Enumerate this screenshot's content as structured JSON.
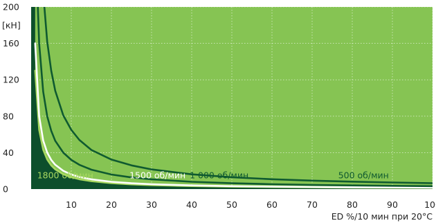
{
  "chart_data": {
    "type": "line",
    "title": "",
    "ylabel": "[кН]",
    "xlabel": "ED %/10 мин при 20°C",
    "xlim": [
      0,
      100
    ],
    "ylim": [
      0,
      200
    ],
    "xticks": [
      "10",
      "20",
      "30",
      "40",
      "50",
      "60",
      "70",
      "80",
      "90",
      "100"
    ],
    "yticks": [
      "0",
      "40",
      "80",
      "120",
      "160",
      "200"
    ],
    "grid": true,
    "colors": {
      "background": "#86c453",
      "fill_region": "#0d4f2c",
      "curve_dark": "#0f5a30",
      "curve_white": "#ffffff",
      "curve_light": "#a8d860",
      "grid": "#ffffff"
    },
    "series": [
      {
        "name": "1800 об/мин",
        "color": "#a8d860",
        "x": [
          1,
          2,
          3,
          4,
          5,
          6,
          8,
          10,
          12,
          15,
          20,
          25,
          30,
          40,
          50,
          60,
          70,
          80,
          90,
          100
        ],
        "y": [
          130,
          65,
          43.3,
          32.5,
          26,
          21.7,
          16.3,
          13,
          10.8,
          8.7,
          6.5,
          5.2,
          4.3,
          3.3,
          2.6,
          2.2,
          1.9,
          1.6,
          1.4,
          1.3
        ]
      },
      {
        "name": "1500 об/мин",
        "color": "#ffffff",
        "x": [
          1,
          2,
          3,
          4,
          5,
          6,
          8,
          10,
          12,
          15,
          20,
          25,
          30,
          40,
          50,
          60,
          70,
          80,
          90,
          100
        ],
        "y": [
          160,
          80,
          53.3,
          40,
          32,
          26.7,
          20,
          16,
          13.3,
          10.7,
          8,
          6.4,
          5.3,
          4,
          3.2,
          2.7,
          2.3,
          2,
          1.8,
          1.6
        ]
      },
      {
        "name": "1 000 об/мин",
        "color": "#0f5a30",
        "x": [
          1.5,
          2,
          3,
          4,
          5,
          6,
          8,
          10,
          12,
          15,
          20,
          25,
          30,
          40,
          50,
          60,
          70,
          80,
          90,
          100
        ],
        "y": [
          220,
          160,
          107,
          80,
          64,
          53,
          40,
          32,
          26.7,
          21.3,
          16,
          12.8,
          10.7,
          8,
          6.4,
          5.3,
          4.6,
          4,
          3.6,
          3.2
        ]
      },
      {
        "name": "500 об/мин",
        "color": "#0f5a30",
        "x": [
          3,
          4,
          5,
          6,
          8,
          10,
          12,
          15,
          20,
          25,
          30,
          40,
          50,
          60,
          70,
          80,
          90,
          100
        ],
        "y": [
          216,
          162,
          130,
          108,
          81,
          65,
          54,
          43,
          32.4,
          26,
          21.6,
          16.2,
          13,
          10.8,
          9.3,
          8.1,
          7.2,
          6.5
        ]
      }
    ],
    "annotations": [
      {
        "text": "1800 об/мин",
        "x": 1.5,
        "y": 15,
        "color": "#a8d860"
      },
      {
        "text": "1500 об/мин",
        "x": 24.5,
        "y": 15,
        "color": "#ffffff"
      },
      {
        "text": "1 000 об/мин",
        "x": 39.5,
        "y": 15,
        "color": "#0f5a30"
      },
      {
        "text": "500 об/мин",
        "x": 76.5,
        "y": 15,
        "color": "#0f5a30"
      }
    ]
  }
}
